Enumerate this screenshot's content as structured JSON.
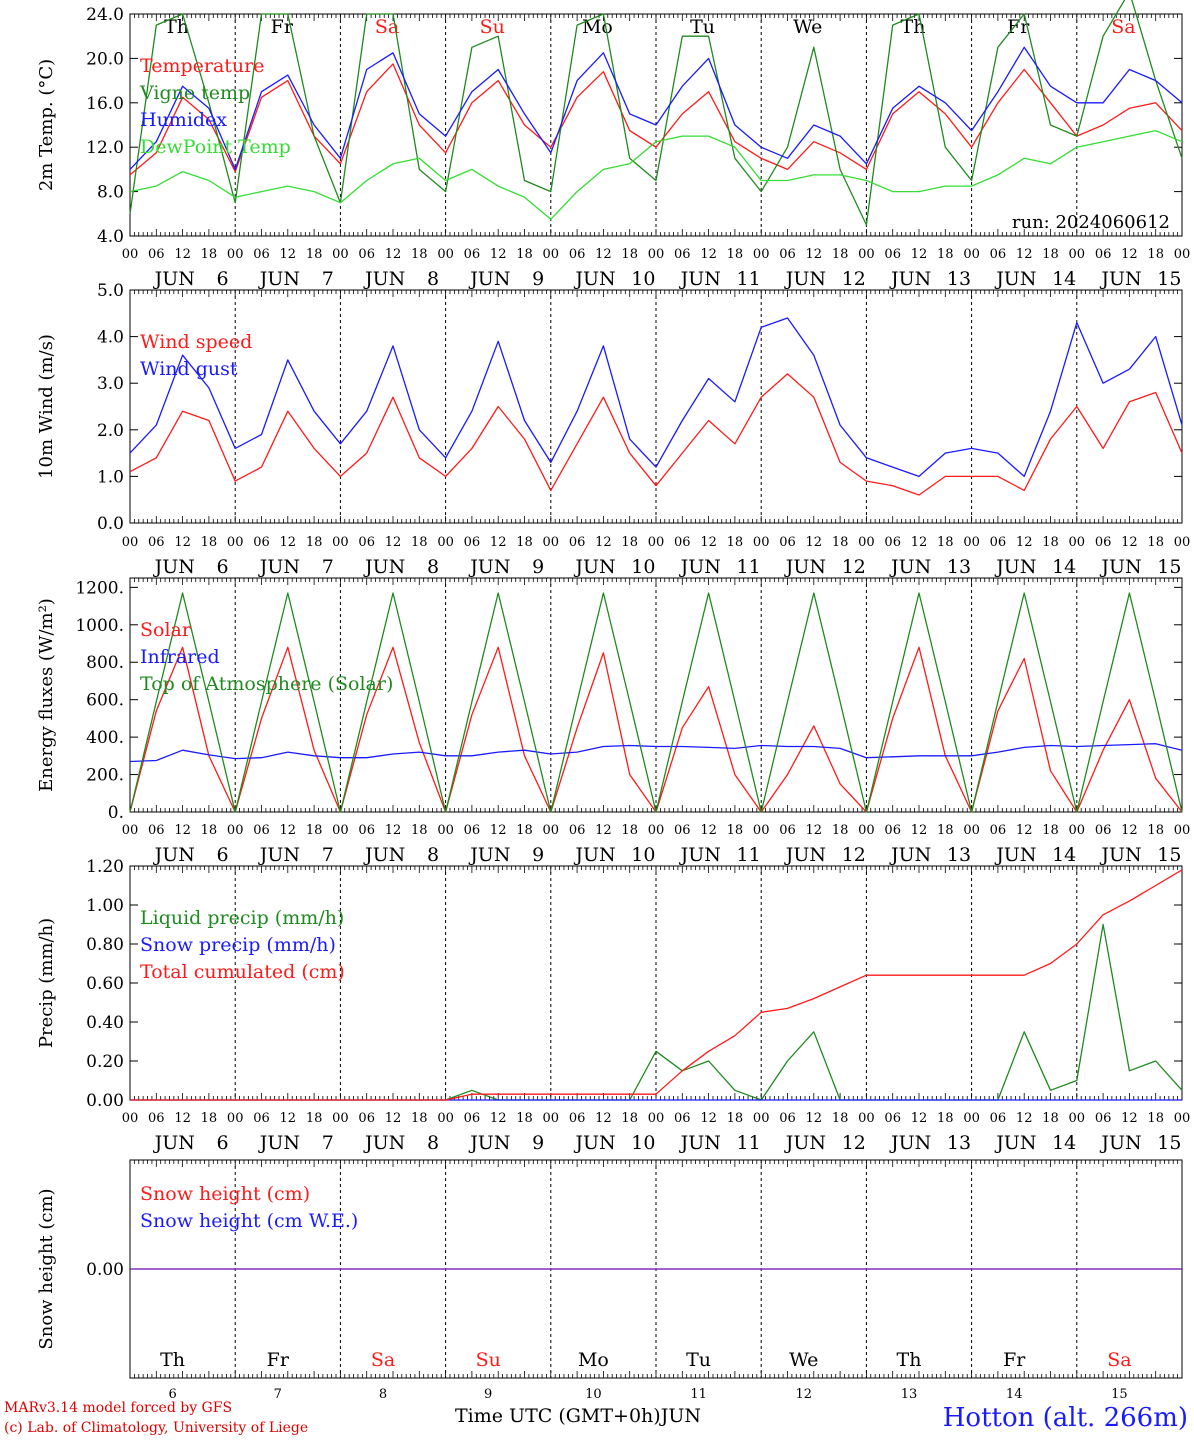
{
  "days": [
    {
      "num": "6",
      "wd": "Th",
      "weekend": false
    },
    {
      "num": "7",
      "wd": "Fr",
      "weekend": false
    },
    {
      "num": "8",
      "wd": "Sa",
      "weekend": true
    },
    {
      "num": "9",
      "wd": "Su",
      "weekend": true
    },
    {
      "num": "10",
      "wd": "Mo",
      "weekend": false
    },
    {
      "num": "11",
      "wd": "Tu",
      "weekend": false
    },
    {
      "num": "12",
      "wd": "We",
      "weekend": false
    },
    {
      "num": "13",
      "wd": "Th",
      "weekend": false
    },
    {
      "num": "14",
      "wd": "Fr",
      "weekend": false
    },
    {
      "num": "15",
      "wd": "Sa",
      "weekend": true
    }
  ],
  "month": "JUN",
  "hour_ticks": [
    "00",
    "06",
    "12",
    "18"
  ],
  "final_tick": "00",
  "colors": {
    "red": "#ff1a1a",
    "green": "#1f8a1f",
    "blue": "#1a1aff",
    "lightgreen": "#33dd33",
    "purple": "#8030c0",
    "weekend": "#ff1a1a"
  },
  "footer": {
    "xtitle": "Time UTC (GMT+0h)",
    "month_label": "JUN",
    "credit1": "MARv3.14 model forced by GFS",
    "credit2": "(c) Lab. of Climatology, University of Liege",
    "station": "Hotton (alt. 266m)"
  },
  "chart_data": [
    {
      "type": "line",
      "ylabel": "2m Temp. (°C)",
      "ylim": [
        4,
        24
      ],
      "yticks": [
        "4.0",
        "8.0",
        "12.0",
        "16.0",
        "20.0",
        "24.0"
      ],
      "ytick_values": [
        4,
        8,
        12,
        16,
        20,
        24
      ],
      "annotation": "run: 2024060612",
      "show_weekdays_top": true,
      "x_hours": [
        0,
        6,
        12,
        18,
        24,
        30,
        36,
        42,
        48,
        54,
        60,
        66,
        72,
        78,
        84,
        90,
        96,
        102,
        108,
        114,
        120,
        126,
        132,
        138,
        144,
        150,
        156,
        162,
        168,
        174,
        180,
        186,
        192,
        198,
        204,
        210,
        216,
        222,
        228,
        234,
        240
      ],
      "series": [
        {
          "name": "Temperature",
          "color": "#ff1a1a",
          "values": [
            9.5,
            11.5,
            16.5,
            14.5,
            9.8,
            16.5,
            18,
            13,
            10.5,
            17,
            19.5,
            14,
            11.5,
            16,
            18,
            14,
            12,
            16.5,
            18.8,
            13.5,
            12,
            15,
            17,
            12.5,
            11,
            10,
            12.5,
            11.5,
            10,
            15,
            17,
            15,
            12,
            16,
            19,
            16,
            13,
            14,
            15.5,
            16,
            13.5
          ]
        },
        {
          "name": "Vigne temp",
          "color": "#1f8a1f",
          "values": [
            6,
            23,
            24,
            16,
            7,
            24,
            24,
            13,
            7,
            24,
            24,
            10,
            8,
            21,
            22,
            9,
            8,
            23,
            24,
            11,
            9,
            22,
            22,
            11,
            8,
            12,
            21,
            10,
            5,
            23,
            24,
            12,
            9,
            21,
            24,
            14,
            13,
            22,
            26,
            18,
            11
          ]
        },
        {
          "name": "Humidex",
          "color": "#1a1aff",
          "values": [
            10,
            12.5,
            17.5,
            15.5,
            10,
            17,
            18.5,
            14,
            11,
            19,
            20.5,
            15,
            13,
            17,
            19,
            15,
            11.5,
            18,
            20.5,
            15,
            14,
            17.5,
            20,
            14,
            12,
            11,
            14,
            13,
            10.5,
            15.5,
            17.5,
            16,
            13.5,
            17,
            21,
            17.5,
            16,
            16,
            19,
            18,
            16
          ]
        },
        {
          "name": "DewPoint Temp",
          "color": "#33dd33",
          "values": [
            8,
            8.5,
            9.8,
            9,
            7.5,
            8,
            8.5,
            8,
            7,
            9,
            10.5,
            11,
            9,
            10,
            8.5,
            7.5,
            5.5,
            8,
            10,
            10.5,
            12.5,
            13,
            13,
            12,
            9,
            9,
            9.5,
            9.5,
            9,
            8,
            8,
            8.5,
            8.5,
            9.5,
            11,
            10.5,
            12,
            12.5,
            13,
            13.5,
            12.5
          ]
        }
      ]
    },
    {
      "type": "line",
      "ylabel": "10m Wind (m/s)",
      "ylim": [
        0,
        5
      ],
      "yticks": [
        "0.0",
        "1.0",
        "2.0",
        "3.0",
        "4.0",
        "5.0"
      ],
      "ytick_values": [
        0,
        1,
        2,
        3,
        4,
        5
      ],
      "x_hours": [
        0,
        6,
        12,
        18,
        24,
        30,
        36,
        42,
        48,
        54,
        60,
        66,
        72,
        78,
        84,
        90,
        96,
        102,
        108,
        114,
        120,
        126,
        132,
        138,
        144,
        150,
        156,
        162,
        168,
        174,
        180,
        186,
        192,
        198,
        204,
        210,
        216,
        222,
        228,
        234,
        240
      ],
      "series": [
        {
          "name": "Wind speed",
          "color": "#ff1a1a",
          "values": [
            1.1,
            1.4,
            2.4,
            2.2,
            0.9,
            1.2,
            2.4,
            1.6,
            1,
            1.5,
            2.7,
            1.4,
            1,
            1.6,
            2.5,
            1.8,
            0.7,
            1.7,
            2.7,
            1.5,
            0.8,
            1.5,
            2.2,
            1.7,
            2.7,
            3.2,
            2.7,
            1.3,
            0.9,
            0.8,
            0.6,
            1,
            1,
            1,
            0.7,
            1.8,
            2.5,
            1.6,
            2.6,
            2.8,
            1.5
          ]
        },
        {
          "name": "Wind gust",
          "color": "#1a1aff",
          "values": [
            1.5,
            2.1,
            3.6,
            2.9,
            1.6,
            1.9,
            3.5,
            2.4,
            1.7,
            2.4,
            3.8,
            2,
            1.4,
            2.4,
            3.9,
            2.2,
            1.3,
            2.4,
            3.8,
            1.8,
            1.2,
            2.2,
            3.1,
            2.6,
            4.2,
            4.4,
            3.6,
            2.1,
            1.4,
            1.2,
            1,
            1.5,
            1.6,
            1.5,
            1,
            2.4,
            4.3,
            3,
            3.3,
            4,
            2.1
          ]
        }
      ]
    },
    {
      "type": "line",
      "ylabel": "Energy fluxes (W/m²)",
      "ylim": [
        0,
        1250
      ],
      "yticks": [
        "0.",
        "200.",
        "400.",
        "600.",
        "800.",
        "1000.",
        "1200."
      ],
      "ytick_values": [
        0,
        200,
        400,
        600,
        800,
        1000,
        1200
      ],
      "x_hours": [
        0,
        6,
        12,
        18,
        24,
        30,
        36,
        42,
        48,
        54,
        60,
        66,
        72,
        78,
        84,
        90,
        96,
        102,
        108,
        114,
        120,
        126,
        132,
        138,
        144,
        150,
        156,
        162,
        168,
        174,
        180,
        186,
        192,
        198,
        204,
        210,
        216,
        222,
        228,
        234,
        240
      ],
      "series": [
        {
          "name": "Solar",
          "color": "#ff1a1a",
          "values": [
            0,
            540,
            880,
            300,
            0,
            500,
            880,
            330,
            0,
            520,
            880,
            370,
            0,
            520,
            880,
            300,
            0,
            450,
            850,
            200,
            0,
            450,
            670,
            200,
            0,
            200,
            460,
            150,
            0,
            500,
            880,
            300,
            0,
            540,
            820,
            220,
            0,
            330,
            600,
            180,
            0
          ]
        },
        {
          "name": "Infrared",
          "color": "#1a1aff",
          "values": [
            270,
            275,
            330,
            305,
            285,
            290,
            320,
            300,
            290,
            290,
            310,
            320,
            300,
            300,
            320,
            330,
            310,
            320,
            350,
            355,
            350,
            350,
            345,
            340,
            355,
            350,
            350,
            340,
            290,
            295,
            300,
            300,
            300,
            320,
            345,
            355,
            350,
            355,
            360,
            365,
            330
          ]
        },
        {
          "name": "Top of Atmosphere (Solar)",
          "color": "#1f8a1f",
          "values": [
            0,
            590,
            1170,
            590,
            0,
            590,
            1170,
            590,
            0,
            590,
            1170,
            590,
            0,
            590,
            1170,
            590,
            0,
            590,
            1170,
            590,
            0,
            590,
            1170,
            590,
            0,
            590,
            1170,
            590,
            0,
            590,
            1170,
            590,
            0,
            590,
            1170,
            590,
            0,
            590,
            1170,
            590,
            0
          ]
        }
      ]
    },
    {
      "type": "line",
      "ylabel": "Precip (mm/h)",
      "ylim": [
        0,
        1.2
      ],
      "yticks": [
        "0.00",
        "0.20",
        "0.40",
        "0.60",
        "0.80",
        "1.00",
        "1.20"
      ],
      "ytick_values": [
        0,
        0.2,
        0.4,
        0.6,
        0.8,
        1,
        1.2
      ],
      "x_hours": [
        0,
        6,
        12,
        18,
        24,
        30,
        36,
        42,
        48,
        54,
        60,
        66,
        72,
        78,
        84,
        90,
        96,
        102,
        108,
        114,
        120,
        126,
        132,
        138,
        144,
        150,
        156,
        162,
        168,
        174,
        180,
        186,
        192,
        198,
        204,
        210,
        216,
        222,
        228,
        234,
        240
      ],
      "series": [
        {
          "name": "Liquid precip (mm/h)",
          "color": "#1f8a1f",
          "values": [
            0,
            0,
            0,
            0,
            0,
            0,
            0,
            0,
            0,
            0,
            0,
            0,
            0,
            0.05,
            0,
            0,
            0,
            0,
            0,
            0,
            0.25,
            0.15,
            0.2,
            0.05,
            0,
            0.2,
            0.35,
            0,
            0,
            0,
            0,
            0,
            0,
            0,
            0.35,
            0.05,
            0.1,
            0.9,
            0.15,
            0.2,
            0.05
          ]
        },
        {
          "name": "Snow precip (mm/h)",
          "color": "#1a1aff",
          "values": [
            0,
            0,
            0,
            0,
            0,
            0,
            0,
            0,
            0,
            0,
            0,
            0,
            0,
            0,
            0,
            0,
            0,
            0,
            0,
            0,
            0,
            0,
            0,
            0,
            0,
            0,
            0,
            0,
            0,
            0,
            0,
            0,
            0,
            0,
            0,
            0,
            0,
            0,
            0,
            0,
            0
          ]
        },
        {
          "name": "Total cumulated (cm)",
          "color": "#ff1a1a",
          "values": [
            0,
            0,
            0,
            0,
            0,
            0,
            0,
            0,
            0,
            0,
            0,
            0,
            0,
            0.03,
            0.03,
            0.03,
            0.03,
            0.03,
            0.03,
            0.03,
            0.03,
            0.15,
            0.25,
            0.33,
            0.45,
            0.47,
            0.52,
            0.58,
            0.64,
            0.64,
            0.64,
            0.64,
            0.64,
            0.64,
            0.64,
            0.7,
            0.8,
            0.95,
            1.02,
            1.1,
            1.18
          ]
        }
      ]
    },
    {
      "type": "line",
      "ylabel": "Snow height (cm)",
      "ylim": [
        -1,
        1
      ],
      "yticks": [
        "0.00"
      ],
      "ytick_values": [
        0
      ],
      "show_weekdays_bottom": true,
      "x_hours": [
        0,
        240
      ],
      "series": [
        {
          "name": "Snow height (cm)",
          "color": "#ff1a1a",
          "values": [
            0,
            0
          ]
        },
        {
          "name": "Snow height (cm W.E.)",
          "color": "#1a1aff",
          "values": [
            0,
            0
          ]
        }
      ],
      "zero_line_color": "#8030c0"
    }
  ]
}
